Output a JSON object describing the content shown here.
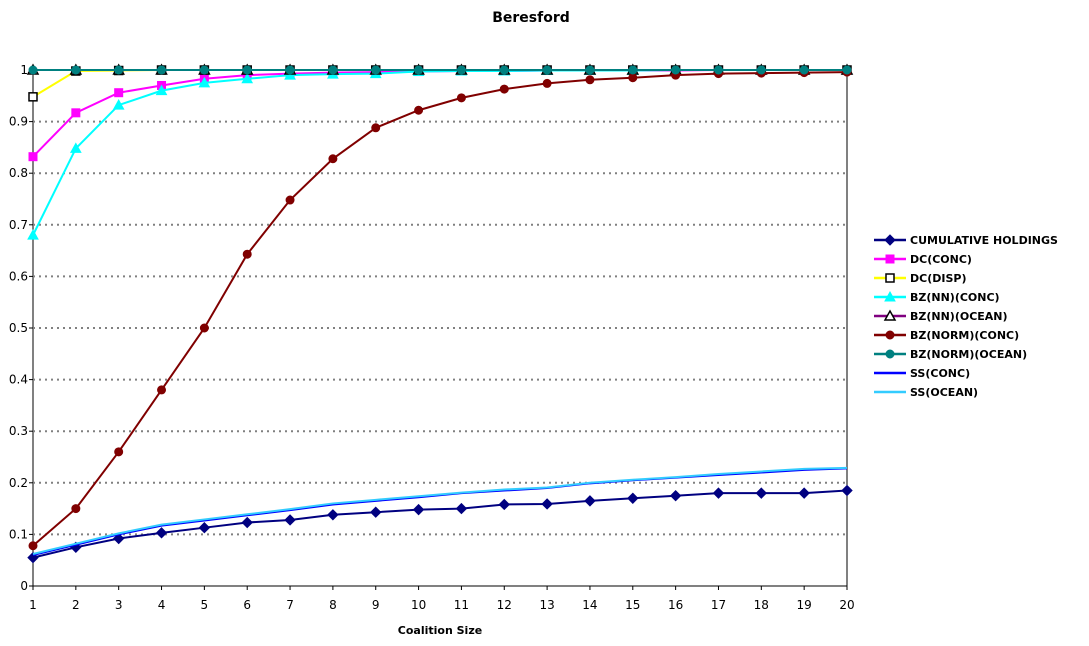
{
  "chart_data": {
    "type": "line",
    "title": "Beresford",
    "xlabel": "Coalition Size",
    "ylabel": "",
    "x": [
      1,
      2,
      3,
      4,
      5,
      6,
      7,
      8,
      9,
      10,
      11,
      12,
      13,
      14,
      15,
      16,
      17,
      18,
      19,
      20
    ],
    "x_ticks": [
      "1",
      "2",
      "3",
      "4",
      "5",
      "6",
      "7",
      "8",
      "9",
      "10",
      "11",
      "12",
      "13",
      "14",
      "15",
      "16",
      "17",
      "18",
      "19",
      "20"
    ],
    "y_ticks": [
      "0",
      "0.1",
      "0.2",
      "0.3",
      "0.4",
      "0.5",
      "0.6",
      "0.7",
      "0.8",
      "0.9",
      "1"
    ],
    "ylim": [
      0,
      1
    ],
    "grid": "horizontal dotted",
    "legend_position": "right",
    "series": [
      {
        "name": "CUMULATIVE HOLDINGS",
        "color": "#000080",
        "marker": "diamond",
        "values": [
          0.055,
          0.075,
          0.092,
          0.103,
          0.113,
          0.123,
          0.128,
          0.138,
          0.143,
          0.148,
          0.15,
          0.158,
          0.159,
          0.165,
          0.17,
          0.175,
          0.18,
          0.18,
          0.18,
          0.185
        ]
      },
      {
        "name": "DC(CONC)",
        "color": "#FF00FF",
        "marker": "square",
        "values": [
          0.832,
          0.917,
          0.956,
          0.97,
          0.983,
          0.99,
          0.993,
          0.995,
          0.996,
          0.997,
          0.998,
          0.998,
          0.999,
          0.999,
          0.999,
          0.999,
          1,
          1,
          1,
          1
        ]
      },
      {
        "name": "DC(DISP)",
        "color": "#FFFF00",
        "marker": "square-open",
        "values": [
          0.948,
          0.998,
          0.999,
          1,
          1,
          1,
          1,
          1,
          1,
          1,
          1,
          1,
          1,
          1,
          1,
          1,
          1,
          1,
          1,
          1
        ]
      },
      {
        "name": "BZ(NN)(CONC)",
        "color": "#00FFFF",
        "marker": "triangle",
        "values": [
          0.68,
          0.848,
          0.932,
          0.96,
          0.975,
          0.983,
          0.99,
          0.992,
          0.993,
          0.997,
          0.998,
          0.998,
          0.999,
          0.999,
          0.999,
          1,
          1,
          1,
          1,
          1
        ]
      },
      {
        "name": "BZ(NN)(OCEAN)",
        "color": "#800080",
        "marker": "triangle-open",
        "values": [
          1,
          1,
          1,
          1,
          1,
          1,
          1,
          1,
          1,
          1,
          1,
          1,
          1,
          1,
          1,
          1,
          1,
          1,
          1,
          1
        ]
      },
      {
        "name": "BZ(NORM)(CONC)",
        "color": "#800000",
        "marker": "circle",
        "values": [
          0.078,
          0.15,
          0.26,
          0.38,
          0.5,
          0.643,
          0.748,
          0.828,
          0.888,
          0.922,
          0.946,
          0.963,
          0.974,
          0.981,
          0.985,
          0.99,
          0.993,
          0.994,
          0.995,
          0.996
        ]
      },
      {
        "name": "BZ(NORM)(OCEAN)",
        "color": "#008080",
        "marker": "circle",
        "values": [
          1,
          1,
          1,
          1,
          1,
          1,
          1,
          1,
          1,
          1,
          1,
          1,
          1,
          1,
          1,
          1,
          1,
          1,
          1,
          1
        ]
      },
      {
        "name": "SS(CONC)",
        "color": "#0000FF",
        "marker": "none",
        "values": [
          0.06,
          0.08,
          0.1,
          0.117,
          0.127,
          0.137,
          0.147,
          0.158,
          0.165,
          0.172,
          0.18,
          0.185,
          0.19,
          0.199,
          0.205,
          0.21,
          0.215,
          0.22,
          0.225,
          0.228
        ]
      },
      {
        "name": "SS(OCEAN)",
        "color": "#33CCFF",
        "marker": "none",
        "values": [
          0.062,
          0.082,
          0.102,
          0.119,
          0.129,
          0.139,
          0.149,
          0.16,
          0.167,
          0.174,
          0.181,
          0.187,
          0.191,
          0.2,
          0.206,
          0.211,
          0.217,
          0.222,
          0.227,
          0.229
        ]
      }
    ]
  }
}
